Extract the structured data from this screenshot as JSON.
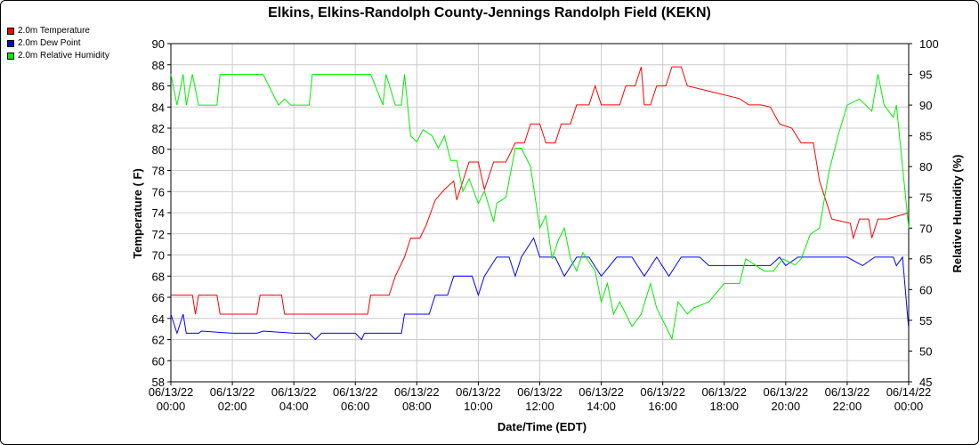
{
  "chart_data": {
    "type": "line",
    "title": "Elkins, Elkins-Randolph County-Jennings Randolph Field (KEKN)",
    "xlabel": "Date/Time (EDT)",
    "ylabel_left": "Temperature ( F)",
    "ylabel_right": "Relative Humidity (%)",
    "x_range": [
      0,
      24
    ],
    "ylim_left": [
      58,
      90
    ],
    "ylim_right": [
      45,
      100
    ],
    "y_ticks_left": [
      "58",
      "60",
      "62",
      "64",
      "66",
      "68",
      "70",
      "72",
      "74",
      "76",
      "78",
      "80",
      "82",
      "84",
      "86",
      "88",
      "90"
    ],
    "y_ticks_right": [
      "45",
      "50",
      "55",
      "60",
      "65",
      "70",
      "75",
      "80",
      "85",
      "90",
      "95",
      "100"
    ],
    "x_ticks": [
      {
        "date": "06/13/22",
        "time": "00:00"
      },
      {
        "date": "06/13/22",
        "time": "02:00"
      },
      {
        "date": "06/13/22",
        "time": "04:00"
      },
      {
        "date": "06/13/22",
        "time": "06:00"
      },
      {
        "date": "06/13/22",
        "time": "08:00"
      },
      {
        "date": "06/13/22",
        "time": "10:00"
      },
      {
        "date": "06/13/22",
        "time": "12:00"
      },
      {
        "date": "06/13/22",
        "time": "14:00"
      },
      {
        "date": "06/13/22",
        "time": "16:00"
      },
      {
        "date": "06/13/22",
        "time": "18:00"
      },
      {
        "date": "06/13/22",
        "time": "20:00"
      },
      {
        "date": "06/13/22",
        "time": "22:00"
      },
      {
        "date": "06/14/22",
        "time": "00:00"
      }
    ],
    "grid": true,
    "legend_position": "top-left",
    "series": [
      {
        "name": "2.0m Temperature",
        "axis": "left",
        "color": "#ff0000",
        "points": [
          [
            0,
            66.2
          ],
          [
            0.7,
            66.2
          ],
          [
            0.8,
            64.4
          ],
          [
            0.9,
            66.2
          ],
          [
            1.5,
            66.2
          ],
          [
            1.6,
            64.4
          ],
          [
            2.8,
            64.4
          ],
          [
            2.9,
            66.2
          ],
          [
            3.6,
            66.2
          ],
          [
            3.7,
            64.4
          ],
          [
            4.5,
            64.4
          ],
          [
            6.4,
            64.4
          ],
          [
            6.5,
            66.2
          ],
          [
            6.8,
            66.2
          ],
          [
            7.0,
            66.2
          ],
          [
            7.1,
            66.2
          ],
          [
            7.3,
            68.0
          ],
          [
            7.6,
            69.8
          ],
          [
            7.8,
            71.6
          ],
          [
            8.1,
            71.6
          ],
          [
            8.3,
            72.8
          ],
          [
            8.6,
            75.2
          ],
          [
            8.9,
            76.2
          ],
          [
            9.2,
            77.0
          ],
          [
            9.3,
            75.2
          ],
          [
            9.5,
            77.0
          ],
          [
            9.7,
            78.8
          ],
          [
            10.0,
            78.8
          ],
          [
            10.2,
            76.2
          ],
          [
            10.5,
            78.8
          ],
          [
            10.9,
            78.8
          ],
          [
            11.2,
            80.6
          ],
          [
            11.5,
            80.6
          ],
          [
            11.7,
            82.4
          ],
          [
            12.0,
            82.4
          ],
          [
            12.2,
            80.6
          ],
          [
            12.5,
            80.6
          ],
          [
            12.7,
            82.4
          ],
          [
            13.0,
            82.4
          ],
          [
            13.2,
            84.2
          ],
          [
            13.6,
            84.2
          ],
          [
            13.8,
            86.0
          ],
          [
            14.0,
            84.2
          ],
          [
            14.2,
            84.2
          ],
          [
            14.6,
            84.2
          ],
          [
            14.8,
            86.0
          ],
          [
            15.1,
            86.0
          ],
          [
            15.3,
            87.8
          ],
          [
            15.4,
            84.2
          ],
          [
            15.6,
            84.2
          ],
          [
            15.8,
            86.0
          ],
          [
            16.1,
            86.0
          ],
          [
            16.3,
            87.8
          ],
          [
            16.6,
            87.8
          ],
          [
            16.8,
            86.0
          ],
          [
            17.5,
            85.5
          ],
          [
            18.5,
            84.8
          ],
          [
            18.8,
            84.2
          ],
          [
            19.2,
            84.2
          ],
          [
            19.5,
            84.0
          ],
          [
            19.8,
            82.4
          ],
          [
            20.2,
            82.0
          ],
          [
            20.5,
            80.6
          ],
          [
            20.9,
            80.6
          ],
          [
            21.1,
            77.0
          ],
          [
            21.3,
            75.2
          ],
          [
            21.5,
            73.4
          ],
          [
            22.1,
            73.0
          ],
          [
            22.2,
            71.6
          ],
          [
            22.4,
            73.4
          ],
          [
            22.7,
            73.4
          ],
          [
            22.8,
            71.6
          ],
          [
            23.0,
            73.4
          ],
          [
            23.3,
            73.4
          ],
          [
            24,
            74.0
          ]
        ]
      },
      {
        "name": "2.0m Dew Point",
        "axis": "left",
        "color": "#0000ff",
        "points": [
          [
            0,
            64.4
          ],
          [
            0.2,
            62.6
          ],
          [
            0.4,
            64.4
          ],
          [
            0.5,
            62.6
          ],
          [
            0.9,
            62.6
          ],
          [
            1.0,
            62.8
          ],
          [
            2.0,
            62.6
          ],
          [
            2.8,
            62.6
          ],
          [
            3.0,
            62.8
          ],
          [
            4.0,
            62.6
          ],
          [
            4.5,
            62.6
          ],
          [
            4.7,
            62.0
          ],
          [
            4.9,
            62.6
          ],
          [
            6.0,
            62.6
          ],
          [
            6.2,
            62.0
          ],
          [
            6.3,
            62.6
          ],
          [
            7.0,
            62.6
          ],
          [
            7.5,
            62.6
          ],
          [
            7.6,
            64.4
          ],
          [
            8.4,
            64.4
          ],
          [
            8.6,
            66.2
          ],
          [
            9.0,
            66.2
          ],
          [
            9.2,
            68.0
          ],
          [
            9.8,
            68.0
          ],
          [
            10.0,
            66.2
          ],
          [
            10.2,
            68.0
          ],
          [
            10.6,
            69.8
          ],
          [
            11.0,
            69.8
          ],
          [
            11.2,
            68.0
          ],
          [
            11.4,
            69.8
          ],
          [
            11.8,
            71.6
          ],
          [
            12.0,
            69.8
          ],
          [
            12.5,
            69.8
          ],
          [
            12.8,
            68.0
          ],
          [
            13.2,
            69.8
          ],
          [
            13.6,
            69.8
          ],
          [
            14.0,
            68.0
          ],
          [
            14.5,
            69.8
          ],
          [
            15.0,
            69.8
          ],
          [
            15.4,
            68.0
          ],
          [
            15.8,
            69.8
          ],
          [
            16.2,
            68.0
          ],
          [
            16.6,
            69.8
          ],
          [
            17.2,
            69.8
          ],
          [
            17.5,
            69.0
          ],
          [
            19.5,
            69.0
          ],
          [
            19.8,
            69.8
          ],
          [
            20.0,
            69.0
          ],
          [
            20.4,
            69.8
          ],
          [
            21.0,
            69.8
          ],
          [
            21.6,
            69.8
          ],
          [
            22.0,
            69.8
          ],
          [
            22.5,
            69.0
          ],
          [
            22.9,
            69.8
          ],
          [
            23.5,
            69.8
          ],
          [
            23.6,
            69.0
          ],
          [
            23.8,
            69.8
          ],
          [
            24,
            63.0
          ]
        ]
      },
      {
        "name": "2.0m Relative Humidity",
        "axis": "right",
        "color": "#00ee00",
        "points": [
          [
            0,
            95
          ],
          [
            0.2,
            90
          ],
          [
            0.4,
            95
          ],
          [
            0.5,
            90
          ],
          [
            0.7,
            95
          ],
          [
            0.9,
            90
          ],
          [
            1.5,
            90
          ],
          [
            1.6,
            95
          ],
          [
            2.0,
            95
          ],
          [
            2.8,
            95
          ],
          [
            3.0,
            95
          ],
          [
            3.5,
            90
          ],
          [
            3.7,
            91
          ],
          [
            3.9,
            90
          ],
          [
            4.5,
            90
          ],
          [
            4.6,
            95
          ],
          [
            5.5,
            95
          ],
          [
            6.0,
            95
          ],
          [
            6.5,
            95
          ],
          [
            6.9,
            90
          ],
          [
            7.0,
            95
          ],
          [
            7.3,
            90
          ],
          [
            7.5,
            90
          ],
          [
            7.6,
            95
          ],
          [
            7.8,
            85
          ],
          [
            8.0,
            84
          ],
          [
            8.2,
            86
          ],
          [
            8.5,
            85
          ],
          [
            8.7,
            83
          ],
          [
            8.9,
            85
          ],
          [
            9.1,
            81
          ],
          [
            9.3,
            81
          ],
          [
            9.5,
            76
          ],
          [
            9.7,
            78
          ],
          [
            10.0,
            74
          ],
          [
            10.2,
            76
          ],
          [
            10.5,
            71
          ],
          [
            10.6,
            74
          ],
          [
            10.9,
            75
          ],
          [
            11.2,
            83
          ],
          [
            11.4,
            83
          ],
          [
            11.7,
            80
          ],
          [
            12.0,
            70
          ],
          [
            12.2,
            72
          ],
          [
            12.4,
            65
          ],
          [
            12.6,
            68
          ],
          [
            12.8,
            70
          ],
          [
            13.0,
            65
          ],
          [
            13.2,
            63
          ],
          [
            13.4,
            66
          ],
          [
            13.8,
            63
          ],
          [
            14.0,
            58
          ],
          [
            14.2,
            61
          ],
          [
            14.4,
            56
          ],
          [
            14.6,
            58
          ],
          [
            14.8,
            56
          ],
          [
            15.0,
            54
          ],
          [
            15.3,
            56
          ],
          [
            15.6,
            61
          ],
          [
            15.8,
            57
          ],
          [
            16.0,
            55
          ],
          [
            16.3,
            52
          ],
          [
            16.5,
            58
          ],
          [
            16.8,
            56
          ],
          [
            17.0,
            57
          ],
          [
            17.5,
            58
          ],
          [
            18.0,
            61
          ],
          [
            18.5,
            61
          ],
          [
            18.7,
            65
          ],
          [
            19.0,
            64
          ],
          [
            19.3,
            63
          ],
          [
            19.6,
            63
          ],
          [
            19.9,
            65
          ],
          [
            20.3,
            64
          ],
          [
            20.5,
            65
          ],
          [
            20.8,
            69
          ],
          [
            21.1,
            70
          ],
          [
            21.4,
            79
          ],
          [
            21.7,
            85
          ],
          [
            22.0,
            90
          ],
          [
            22.4,
            91
          ],
          [
            22.8,
            89
          ],
          [
            23.0,
            95
          ],
          [
            23.2,
            90
          ],
          [
            23.5,
            88
          ],
          [
            23.6,
            90
          ],
          [
            24,
            70
          ]
        ]
      }
    ]
  }
}
